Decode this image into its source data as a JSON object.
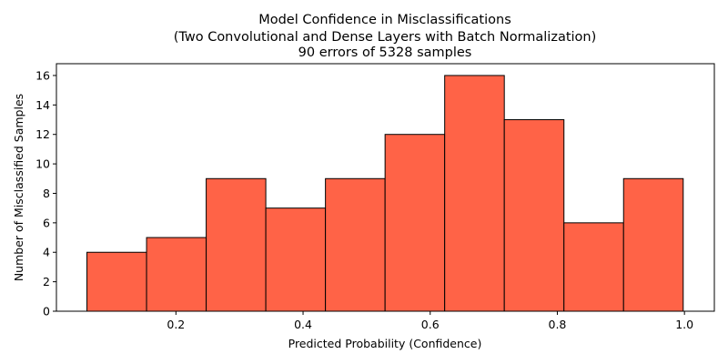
{
  "chart_data": {
    "type": "bar",
    "title_lines": [
      "Model Confidence in Misclassifications",
      "(Two Convolutional and Dense Layers with Batch Normalization)",
      "90 errors of 5328 samples"
    ],
    "xlabel": "Predicted Probability (Confidence)",
    "ylabel": "Number of Misclassified Samples",
    "bin_edges": [
      0.06,
      0.1538,
      0.2476,
      0.3414,
      0.4352,
      0.529,
      0.6228,
      0.7166,
      0.8104,
      0.9042,
      0.998
    ],
    "values": [
      4,
      5,
      9,
      7,
      9,
      12,
      16,
      13,
      6,
      9
    ],
    "xlim": [
      0.012,
      1.047
    ],
    "ylim": [
      0,
      16.8
    ],
    "xticks": [
      {
        "value": 0.2,
        "label": "0.2"
      },
      {
        "value": 0.4,
        "label": "0.4"
      },
      {
        "value": 0.6,
        "label": "0.6"
      },
      {
        "value": 0.8,
        "label": "0.8"
      },
      {
        "value": 1.0,
        "label": "1.0"
      }
    ],
    "yticks": [
      {
        "value": 0,
        "label": "0"
      },
      {
        "value": 2,
        "label": "2"
      },
      {
        "value": 4,
        "label": "4"
      },
      {
        "value": 6,
        "label": "6"
      },
      {
        "value": 8,
        "label": "8"
      },
      {
        "value": 10,
        "label": "10"
      },
      {
        "value": 12,
        "label": "12"
      },
      {
        "value": 14,
        "label": "14"
      },
      {
        "value": 16,
        "label": "16"
      }
    ],
    "bar_color": "#ff6347",
    "edge_color": "#000000",
    "grid": false,
    "legend": "none"
  }
}
